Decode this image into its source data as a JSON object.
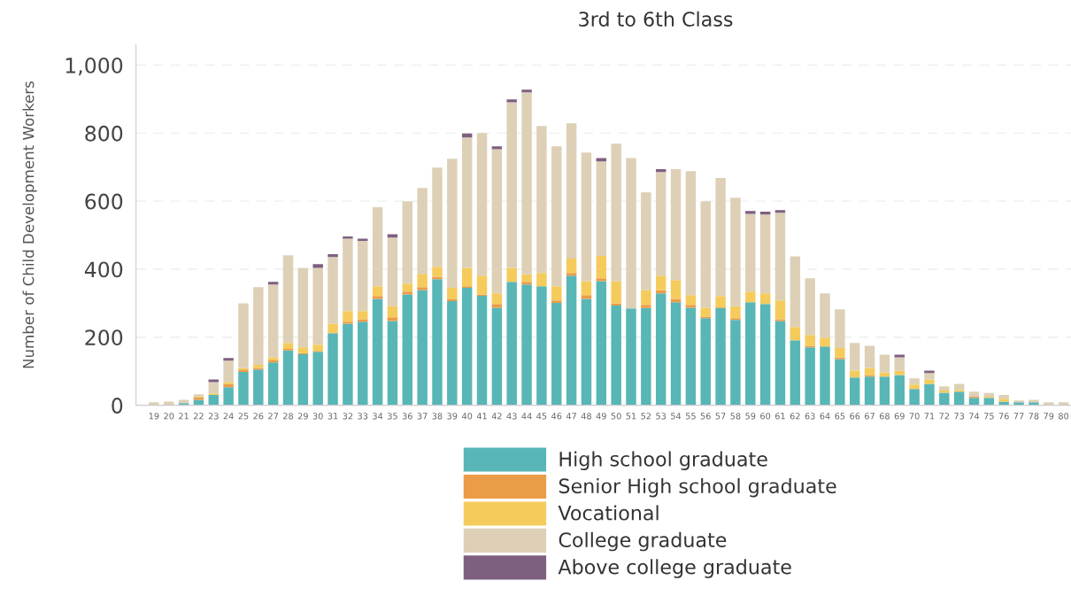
{
  "chart_data": {
    "type": "bar",
    "stacked": true,
    "title": "3rd to 6th Class",
    "ylabel": "Number of Child Development Workers",
    "categories": [
      "19",
      "20",
      "21",
      "22",
      "23",
      "24",
      "25",
      "26",
      "27",
      "28",
      "29",
      "30",
      "31",
      "32",
      "33",
      "34",
      "35",
      "36",
      "37",
      "38",
      "39",
      "40",
      "41",
      "42",
      "43",
      "44",
      "45",
      "46",
      "47",
      "48",
      "49",
      "50",
      "51",
      "52",
      "53",
      "54",
      "55",
      "56",
      "57",
      "58",
      "59",
      "60",
      "61",
      "62",
      "63",
      "64",
      "65",
      "66",
      "67",
      "68",
      "69",
      "70",
      "71",
      "72",
      "73",
      "74",
      "75",
      "76",
      "77",
      "78",
      "79",
      "80"
    ],
    "series": [
      {
        "name": "High school graduate",
        "color": "#58b6b6",
        "values": [
          0,
          0,
          6,
          16,
          30,
          53,
          98,
          105,
          126,
          161,
          150,
          157,
          212,
          240,
          246,
          313,
          248,
          326,
          339,
          371,
          306,
          345,
          322,
          287,
          363,
          355,
          350,
          301,
          381,
          313,
          365,
          293,
          285,
          286,
          329,
          303,
          287,
          256,
          286,
          251,
          303,
          298,
          248,
          191,
          170,
          173,
          136,
          82,
          84,
          84,
          89,
          48,
          63,
          37,
          40,
          22,
          22,
          11,
          9,
          9,
          0,
          0
        ]
      },
      {
        "name": "Senior High school graduate",
        "color": "#eb9c47",
        "values": [
          0,
          0,
          0,
          7,
          0,
          10,
          7,
          5,
          6,
          5,
          3,
          3,
          0,
          6,
          7,
          8,
          11,
          8,
          8,
          7,
          7,
          5,
          4,
          11,
          0,
          8,
          0,
          7,
          8,
          11,
          8,
          7,
          0,
          9,
          9,
          10,
          8,
          5,
          2,
          5,
          0,
          0,
          5,
          0,
          5,
          0,
          5,
          0,
          5,
          0,
          0,
          0,
          0,
          0,
          0,
          3,
          0,
          0,
          0,
          0,
          0,
          0
        ]
      },
      {
        "name": "Vocational",
        "color": "#f5cb5c",
        "values": [
          0,
          0,
          0,
          2,
          5,
          6,
          4,
          9,
          9,
          17,
          17,
          18,
          28,
          31,
          24,
          29,
          32,
          24,
          39,
          29,
          32,
          54,
          55,
          31,
          41,
          22,
          39,
          42,
          42,
          41,
          66,
          65,
          0,
          43,
          43,
          55,
          29,
          26,
          33,
          35,
          31,
          31,
          55,
          39,
          32,
          26,
          27,
          20,
          21,
          13,
          13,
          13,
          13,
          6,
          5,
          0,
          3,
          8,
          0,
          0,
          0,
          0
        ]
      },
      {
        "name": "College graduate",
        "color": "#ddd0b6",
        "values": [
          9,
          11,
          10,
          7,
          33,
          62,
          191,
          228,
          214,
          258,
          234,
          226,
          196,
          213,
          206,
          232,
          202,
          242,
          253,
          292,
          380,
          383,
          419,
          424,
          487,
          535,
          432,
          411,
          398,
          378,
          278,
          404,
          442,
          288,
          305,
          326,
          364,
          313,
          347,
          319,
          229,
          232,
          258,
          208,
          166,
          130,
          114,
          81,
          65,
          52,
          39,
          18,
          19,
          13,
          18,
          15,
          11,
          11,
          5,
          7,
          9,
          9
        ]
      },
      {
        "name": "Above college graduate",
        "color": "#7f5f80",
        "values": [
          0,
          0,
          0,
          0,
          8,
          8,
          0,
          0,
          8,
          0,
          0,
          11,
          8,
          6,
          7,
          0,
          10,
          0,
          0,
          0,
          0,
          12,
          0,
          8,
          8,
          8,
          0,
          0,
          0,
          0,
          10,
          0,
          0,
          0,
          8,
          0,
          0,
          0,
          0,
          0,
          8,
          8,
          8,
          0,
          0,
          0,
          0,
          0,
          0,
          0,
          8,
          0,
          7,
          0,
          0,
          0,
          0,
          0,
          0,
          0,
          0,
          0
        ]
      }
    ],
    "ylim": [
      0,
      1060
    ],
    "yticks": [
      0,
      200,
      400,
      600,
      800,
      {
        "value": 1000,
        "label": "1,000"
      }
    ],
    "grid": "y",
    "legend": "bottom"
  }
}
